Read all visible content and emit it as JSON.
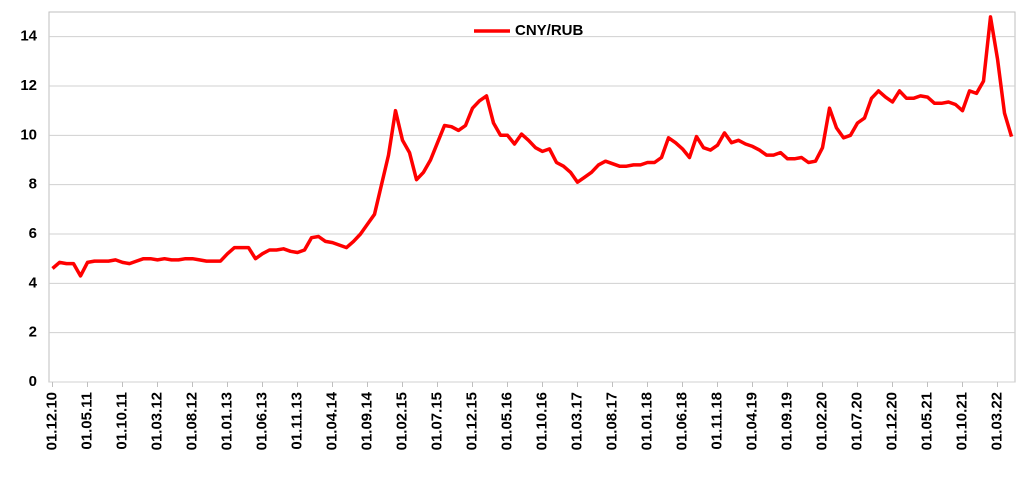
{
  "chart_data": {
    "type": "line",
    "categories": [
      "01.12.10",
      null,
      null,
      null,
      null,
      "01.05.11",
      null,
      null,
      null,
      null,
      "01.10.11",
      null,
      null,
      null,
      null,
      "01.03.12",
      null,
      null,
      null,
      null,
      "01.08.12",
      null,
      null,
      null,
      null,
      "01.01.13",
      null,
      null,
      null,
      null,
      "01.06.13",
      null,
      null,
      null,
      null,
      "01.11.13",
      null,
      null,
      null,
      null,
      "01.04.14",
      null,
      null,
      null,
      null,
      "01.09.14",
      null,
      null,
      null,
      null,
      "01.02.15",
      null,
      null,
      null,
      null,
      "01.07.15",
      null,
      null,
      null,
      null,
      "01.12.15",
      null,
      null,
      null,
      null,
      "01.05.16",
      null,
      null,
      null,
      null,
      "01.10.16",
      null,
      null,
      null,
      null,
      "01.03.17",
      null,
      null,
      null,
      null,
      "01.08.17",
      null,
      null,
      null,
      null,
      "01.01.18",
      null,
      null,
      null,
      null,
      "01.06.18",
      null,
      null,
      null,
      null,
      "01.11.18",
      null,
      null,
      null,
      null,
      "01.04.19",
      null,
      null,
      null,
      null,
      "01.09.19",
      null,
      null,
      null,
      null,
      "01.02.20",
      null,
      null,
      null,
      null,
      "01.07.20",
      null,
      null,
      null,
      null,
      "01.12.20",
      null,
      null,
      null,
      null,
      "01.05.21",
      null,
      null,
      null,
      null,
      "01.10.21",
      null,
      null,
      null,
      null,
      "01.03.22",
      null,
      null
    ],
    "series": [
      {
        "name": "CNY/RUB",
        "color": "#ff0000",
        "values": [
          4.6,
          4.85,
          4.8,
          4.8,
          4.3,
          4.85,
          4.9,
          4.9,
          4.9,
          4.95,
          4.85,
          4.8,
          4.9,
          5.0,
          5.0,
          4.95,
          5.0,
          4.95,
          4.95,
          5.0,
          5.0,
          4.95,
          4.9,
          4.9,
          4.9,
          5.2,
          5.45,
          5.45,
          5.45,
          5.0,
          5.2,
          5.35,
          5.35,
          5.4,
          5.3,
          5.25,
          5.35,
          5.85,
          5.9,
          5.7,
          5.65,
          5.55,
          5.45,
          5.7,
          6.0,
          6.4,
          6.8,
          8.0,
          9.2,
          11.0,
          9.8,
          9.3,
          8.2,
          8.5,
          9.0,
          9.7,
          10.4,
          10.35,
          10.2,
          10.4,
          11.1,
          11.4,
          11.6,
          10.5,
          10.0,
          10.0,
          9.65,
          10.05,
          9.8,
          9.5,
          9.35,
          9.45,
          8.9,
          8.75,
          8.5,
          8.1,
          8.3,
          8.5,
          8.8,
          8.95,
          8.85,
          8.75,
          8.75,
          8.8,
          8.8,
          8.9,
          8.9,
          9.1,
          9.9,
          9.7,
          9.45,
          9.1,
          9.95,
          9.5,
          9.4,
          9.6,
          10.1,
          9.7,
          9.8,
          9.65,
          9.55,
          9.4,
          9.2,
          9.2,
          9.3,
          9.05,
          9.05,
          9.1,
          8.9,
          8.95,
          9.5,
          11.1,
          10.3,
          9.9,
          10.0,
          10.5,
          10.7,
          11.5,
          11.8,
          11.55,
          11.35,
          11.8,
          11.5,
          11.5,
          11.6,
          11.55,
          11.3,
          11.3,
          11.35,
          11.25,
          11.0,
          11.8,
          11.7,
          12.2,
          14.8,
          13.1,
          10.9,
          9.95
        ]
      }
    ],
    "ylim": [
      0,
      15
    ],
    "yticks": [
      0,
      2,
      4,
      6,
      8,
      10,
      12,
      14
    ],
    "grid": true,
    "legend": "top"
  }
}
